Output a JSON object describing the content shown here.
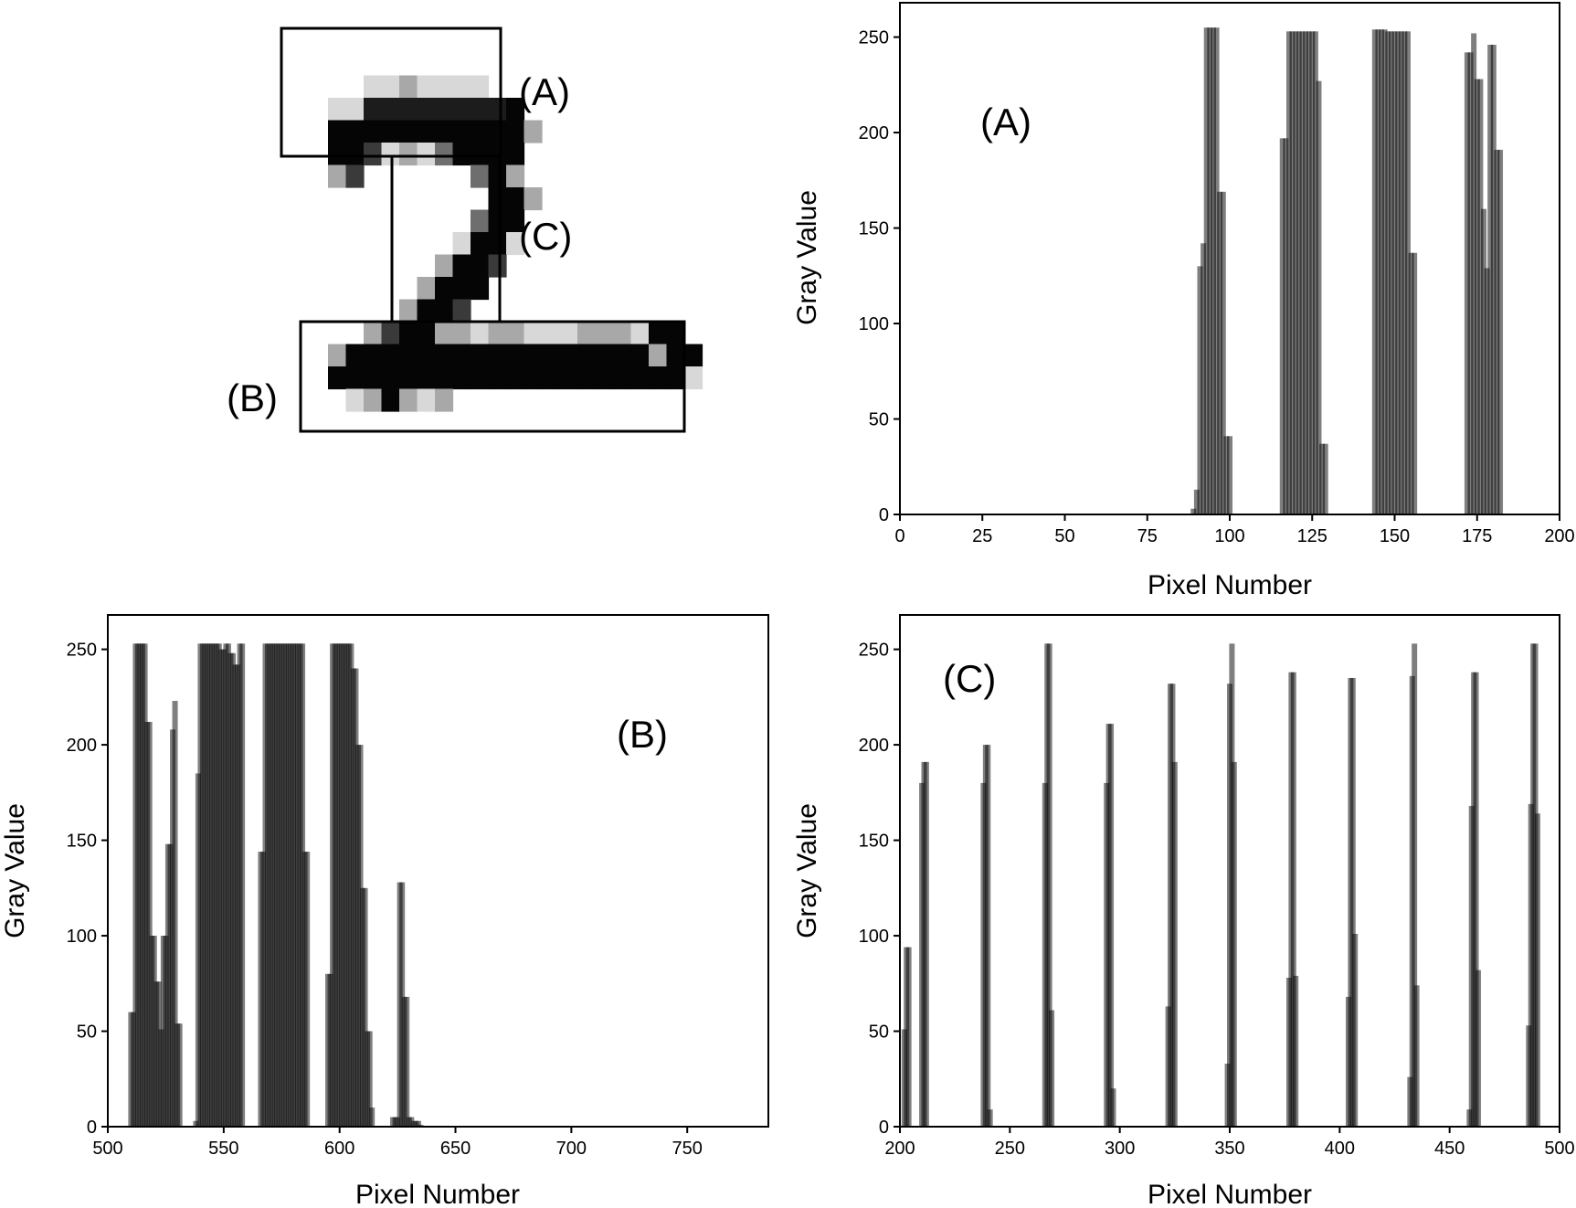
{
  "digit_image": {
    "grid_rows": 16,
    "grid_cols": 21,
    "pixels": [
      "...........................",
      "....llmllll...............",
      "..llbbbbbbbbk.............",
      "..kkkkkkkkkkkm............",
      "..kkdlmlgkkkk.............",
      "..md......gkm.............",
      "...........kkm............",
      "..........gkk.............",
      ".........lkkl.............",
      "........mkkd..............",
      ".......mkkk...............",
      "......mkkd................",
      "....mdkkmmlmmlllmmmlkk....",
      "..mkkkkkkkkkkkkkkkkkmkk...",
      "..kkkkkkkkkkkkkkkkkkkkl...",
      "...lmkmlm.................."
    ],
    "labels": [
      "(A)",
      "(B)",
      "(C)"
    ]
  },
  "chart_data": [
    {
      "id": "A",
      "type": "bar",
      "annotation": "(A)",
      "xlabel": "Pixel Number",
      "ylabel": "Gray Value",
      "xlim": [
        0,
        200
      ],
      "ylim": [
        0,
        268
      ],
      "xticks": [
        0,
        25,
        50,
        75,
        100,
        125,
        150,
        175,
        200
      ],
      "yticks": [
        0,
        50,
        100,
        150,
        200,
        250
      ],
      "bar_width": 1,
      "x": [
        89,
        90,
        91,
        92,
        93,
        94,
        95,
        96,
        97,
        98,
        99,
        100,
        101,
        116,
        117,
        118,
        119,
        120,
        121,
        122,
        123,
        124,
        125,
        126,
        127,
        128,
        129,
        130,
        144,
        145,
        146,
        147,
        148,
        149,
        150,
        151,
        152,
        153,
        154,
        155,
        156,
        157,
        158,
        172,
        173,
        174,
        175,
        176,
        177,
        178,
        179,
        180,
        181,
        182,
        183,
        184,
        185
      ],
      "values": [
        3,
        13,
        130,
        142,
        255,
        255,
        255,
        255,
        169,
        169,
        41,
        41,
        0,
        197,
        197,
        253,
        253,
        253,
        253,
        253,
        253,
        253,
        253,
        253,
        227,
        37,
        37,
        0,
        254,
        254,
        254,
        254,
        253,
        253,
        253,
        253,
        253,
        253,
        253,
        137,
        137,
        0,
        0,
        242,
        242,
        252,
        228,
        228,
        160,
        129,
        246,
        246,
        191,
        191,
        0,
        0,
        0
      ]
    },
    {
      "id": "B",
      "type": "bar",
      "annotation": "(B)",
      "xlabel": "Pixel Number",
      "ylabel": "Gray Value",
      "xlim": [
        500,
        785
      ],
      "ylim": [
        0,
        268
      ],
      "xticks": [
        500,
        550,
        600,
        650,
        700,
        750
      ],
      "yticks": [
        0,
        50,
        100,
        150,
        200,
        250
      ],
      "bar_width": 1,
      "x": [
        510,
        511,
        512,
        513,
        514,
        515,
        516,
        517,
        518,
        519,
        520,
        521,
        522,
        523,
        524,
        525,
        526,
        527,
        528,
        529,
        530,
        531,
        538,
        539,
        540,
        541,
        542,
        543,
        544,
        545,
        546,
        547,
        548,
        549,
        550,
        551,
        552,
        553,
        554,
        555,
        556,
        557,
        558,
        559,
        566,
        567,
        568,
        569,
        570,
        571,
        572,
        573,
        574,
        575,
        576,
        577,
        578,
        579,
        580,
        581,
        582,
        583,
        584,
        585,
        586,
        587,
        595,
        596,
        597,
        598,
        599,
        600,
        601,
        602,
        603,
        604,
        605,
        606,
        607,
        608,
        609,
        610,
        611,
        612,
        613,
        614,
        623,
        624,
        625,
        626,
        627,
        628,
        629,
        630,
        631,
        632,
        633,
        634,
        635
      ],
      "values": [
        60,
        60,
        253,
        253,
        253,
        253,
        253,
        212,
        212,
        100,
        100,
        76,
        76,
        51,
        100,
        100,
        148,
        148,
        208,
        223,
        54,
        54,
        3,
        185,
        253,
        253,
        253,
        253,
        253,
        253,
        253,
        253,
        253,
        250,
        250,
        253,
        253,
        248,
        248,
        242,
        242,
        253,
        253,
        0,
        144,
        144,
        253,
        253,
        253,
        253,
        253,
        253,
        253,
        253,
        253,
        253,
        253,
        253,
        253,
        253,
        253,
        253,
        253,
        144,
        144,
        0,
        80,
        80,
        253,
        253,
        253,
        253,
        253,
        253,
        253,
        253,
        253,
        240,
        240,
        200,
        200,
        125,
        125,
        50,
        50,
        10,
        5,
        5,
        5,
        128,
        128,
        68,
        68,
        5,
        5,
        3,
        3,
        3,
        1
      ]
    },
    {
      "id": "C",
      "type": "bar",
      "annotation": "(C)",
      "xlabel": "Pixel Number",
      "ylabel": "Gray Value",
      "xlim": [
        200,
        500
      ],
      "ylim": [
        0,
        268
      ],
      "xticks": [
        200,
        250,
        300,
        350,
        400,
        450,
        500
      ],
      "yticks": [
        0,
        50,
        100,
        150,
        200,
        250
      ],
      "bar_width": 1,
      "x": [
        202,
        203,
        204,
        205,
        210,
        211,
        212,
        213,
        238,
        239,
        240,
        241,
        266,
        267,
        268,
        269,
        294,
        295,
        296,
        297,
        322,
        323,
        324,
        325,
        349,
        350,
        351,
        352,
        377,
        378,
        379,
        380,
        404,
        405,
        406,
        407,
        432,
        433,
        434,
        435,
        459,
        460,
        461,
        462,
        463,
        486,
        487,
        488,
        489,
        490
      ],
      "values": [
        51,
        94,
        94,
        0,
        180,
        191,
        191,
        0,
        180,
        200,
        200,
        9,
        180,
        253,
        253,
        61,
        180,
        211,
        211,
        20,
        63,
        232,
        232,
        191,
        33,
        232,
        253,
        191,
        78,
        238,
        238,
        79,
        68,
        235,
        235,
        101,
        26,
        236,
        253,
        74,
        9,
        168,
        238,
        238,
        82,
        53,
        169,
        253,
        253,
        164
      ]
    }
  ]
}
